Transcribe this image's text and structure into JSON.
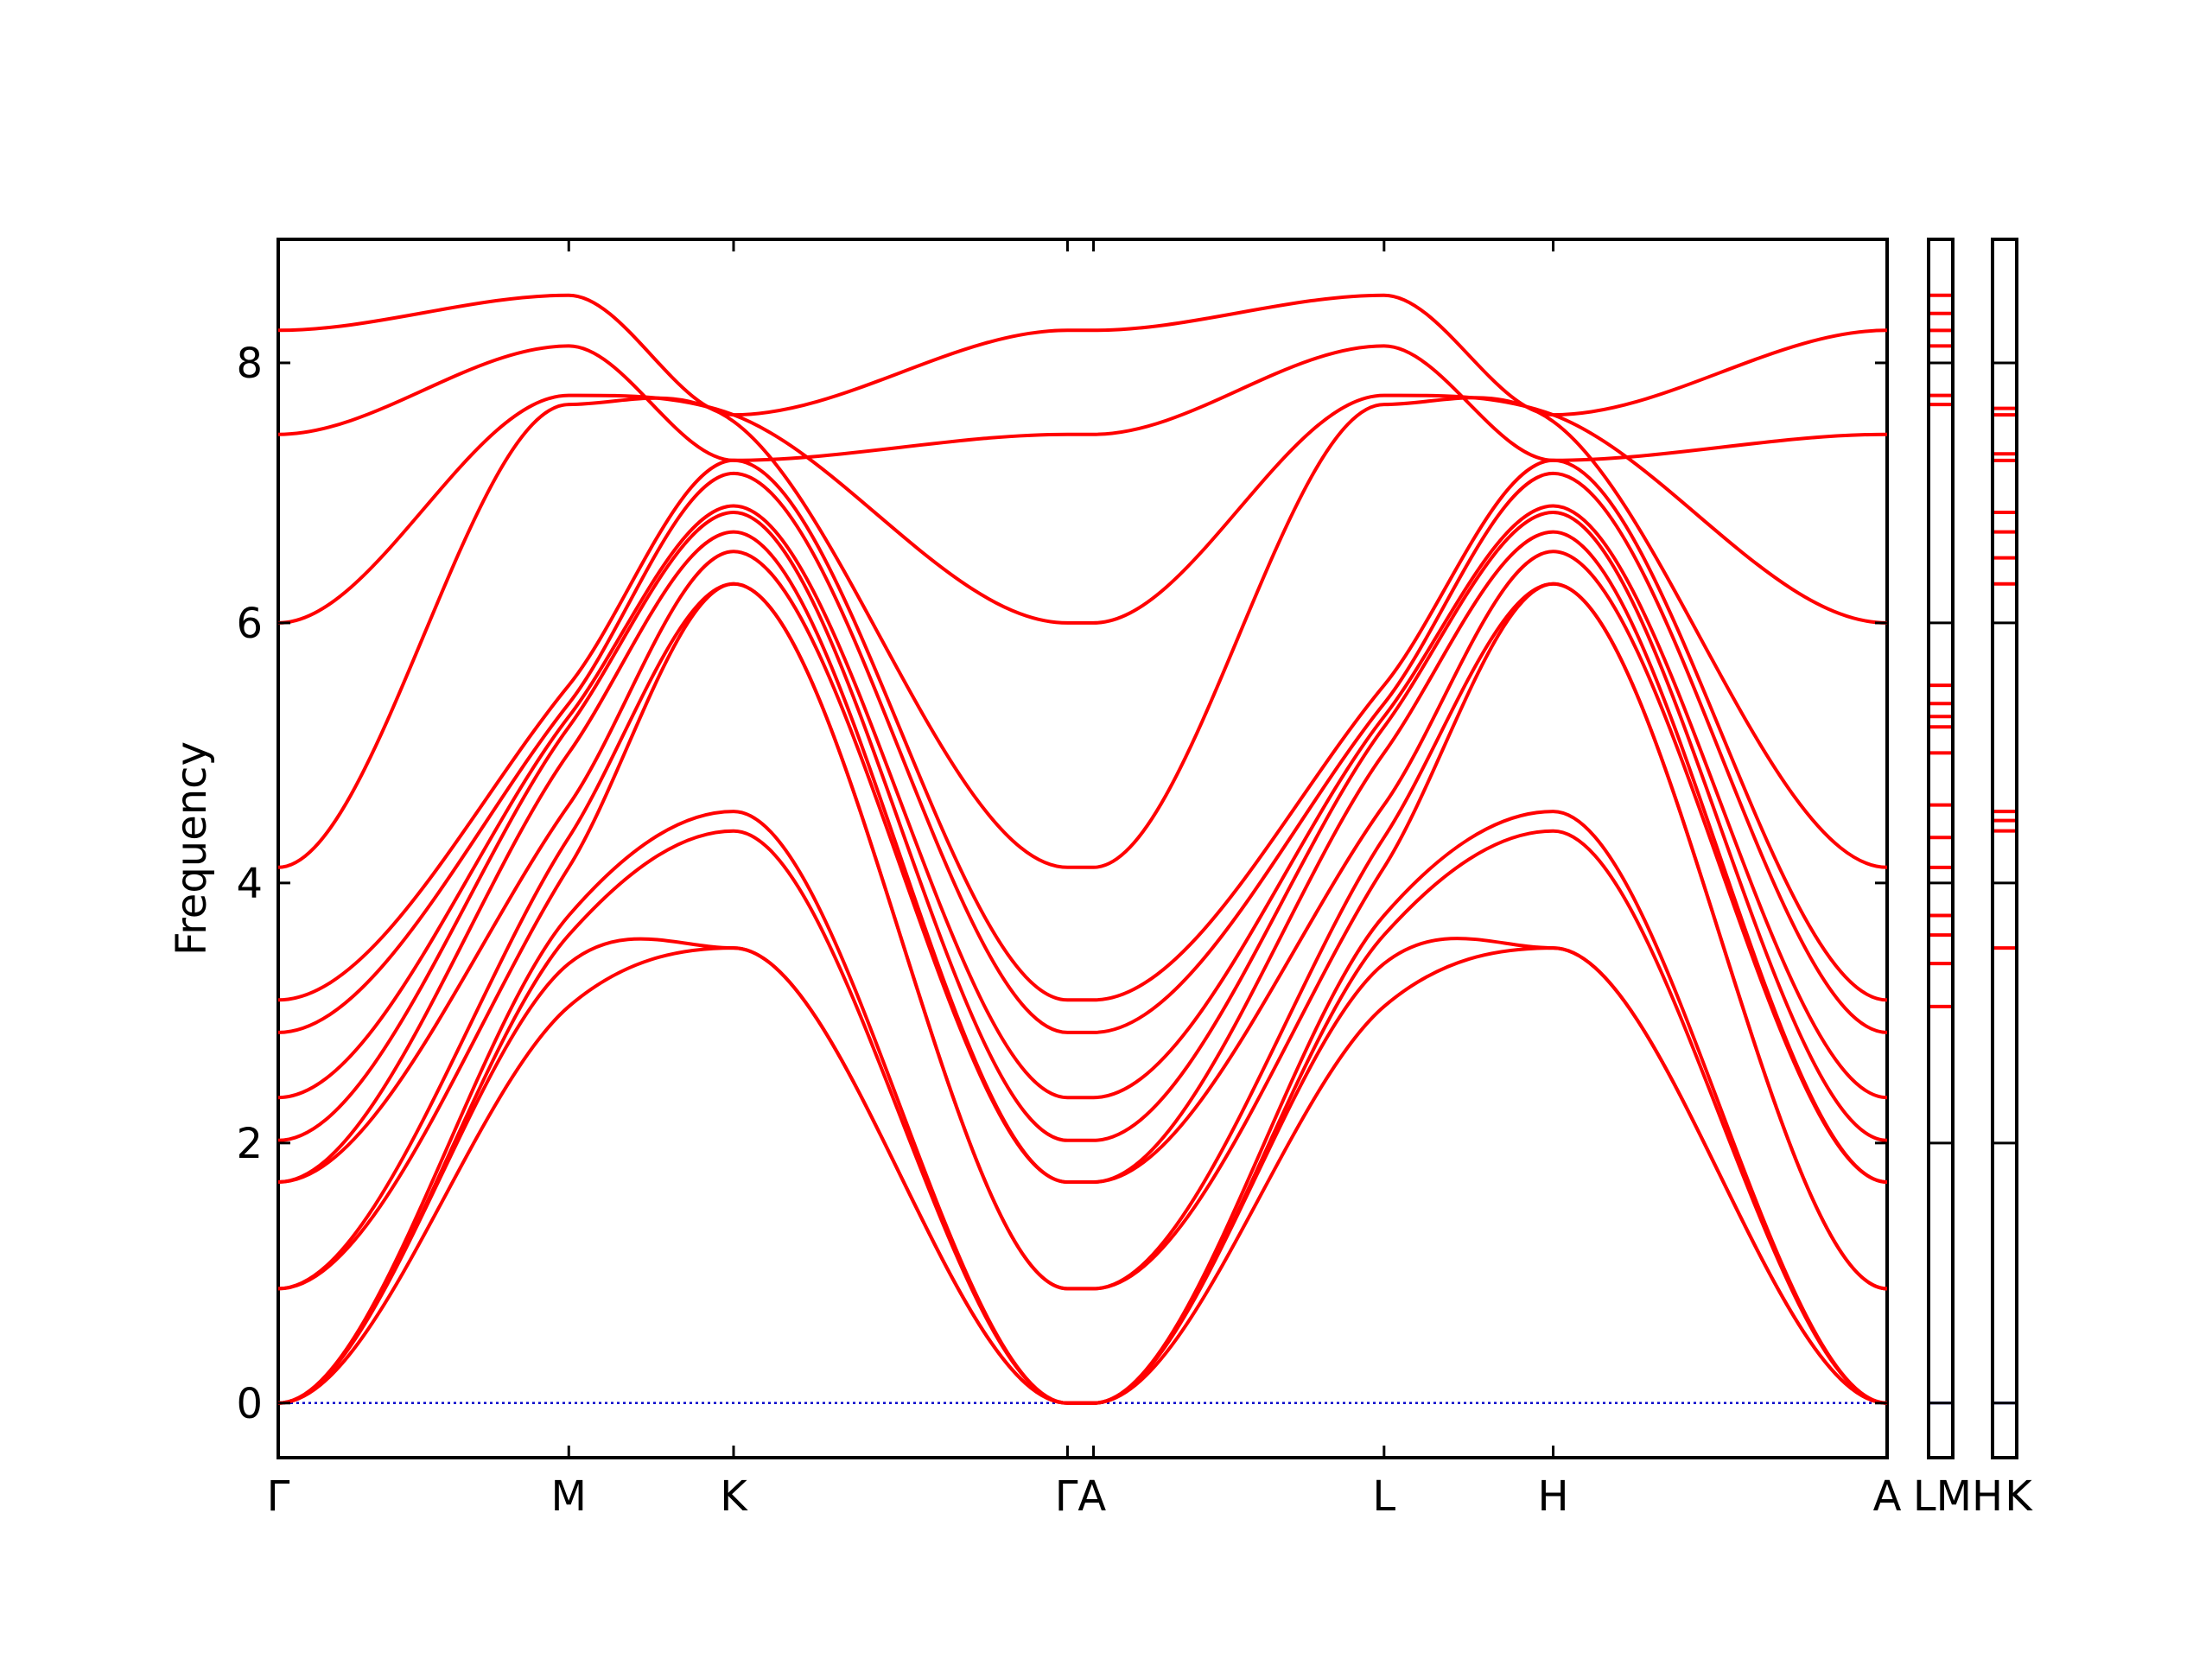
{
  "chart_data": {
    "type": "line",
    "title": "",
    "xlabel": "",
    "ylabel": "Frequency",
    "ylim": [
      -0.42,
      8.95
    ],
    "yticks": [
      0,
      2,
      4,
      6,
      8
    ],
    "grid": false,
    "legend": "none",
    "line_color": "#ff0000",
    "zero_line_color": "#0000cc",
    "main_panel": {
      "xlim": [
        0,
        3.71
      ],
      "xticks": [
        {
          "x": 0.0,
          "label": "Γ"
        },
        {
          "x": 0.67,
          "label": "M"
        },
        {
          "x": 1.05,
          "label": "K"
        },
        {
          "x": 1.82,
          "label": "Γ"
        },
        {
          "x": 1.88,
          "label": "A"
        },
        {
          "x": 2.55,
          "label": "L"
        },
        {
          "x": 2.94,
          "label": "H"
        },
        {
          "x": 3.71,
          "label": "A"
        }
      ],
      "tick_label_text": [
        "Γ",
        "M",
        "K",
        "ΓA",
        "L",
        "H",
        "A"
      ],
      "bands": [
        [
          0.0,
          3.05,
          3.5,
          0.0,
          0.0,
          3.05,
          3.5,
          0.0
        ],
        [
          0.0,
          3.38,
          3.5,
          0.0,
          0.0,
          3.38,
          3.5,
          0.0
        ],
        [
          0.0,
          3.6,
          4.4,
          0.0,
          0.0,
          3.6,
          4.4,
          0.0
        ],
        [
          0.0,
          3.75,
          4.55,
          0.0,
          0.0,
          3.75,
          4.55,
          0.0
        ],
        [
          0.88,
          4.12,
          6.3,
          0.88,
          0.88,
          4.12,
          6.3,
          0.88
        ],
        [
          0.88,
          4.35,
          6.3,
          0.88,
          0.88,
          4.35,
          6.3,
          0.88
        ],
        [
          1.7,
          4.6,
          6.55,
          1.7,
          1.7,
          4.6,
          6.55,
          1.7
        ],
        [
          1.7,
          5.0,
          6.7,
          1.7,
          1.7,
          5.0,
          6.7,
          1.7
        ],
        [
          2.02,
          5.2,
          6.85,
          2.02,
          2.02,
          5.2,
          6.85,
          2.02
        ],
        [
          2.35,
          5.28,
          6.9,
          2.35,
          2.35,
          5.28,
          6.9,
          2.35
        ],
        [
          2.85,
          5.38,
          7.15,
          2.85,
          2.85,
          5.38,
          7.15,
          2.85
        ],
        [
          3.1,
          5.52,
          7.25,
          3.1,
          3.1,
          5.52,
          7.25,
          3.1
        ],
        [
          4.12,
          7.68,
          7.55,
          4.12,
          4.12,
          7.68,
          7.55,
          4.12
        ],
        [
          6.0,
          7.75,
          7.6,
          6.0,
          6.0,
          7.75,
          7.6,
          6.0
        ],
        [
          7.45,
          8.13,
          7.25,
          7.45,
          7.45,
          8.13,
          7.25,
          7.45
        ],
        [
          8.25,
          8.52,
          7.6,
          8.25,
          8.25,
          8.52,
          7.6,
          8.25
        ]
      ]
    },
    "dos_panel_LM": {
      "xticks": [
        {
          "label": "L"
        },
        {
          "label": "M"
        }
      ],
      "levels": [
        3.05,
        3.38,
        3.6,
        3.75,
        4.12,
        4.35,
        4.6,
        5.0,
        5.2,
        5.28,
        5.38,
        5.52,
        7.68,
        7.75,
        8.13,
        8.25,
        8.38,
        8.52
      ]
    },
    "dos_panel_HK": {
      "xticks": [
        {
          "label": "H"
        },
        {
          "label": "K"
        }
      ],
      "tick_label_text": [
        "LMH",
        "K"
      ],
      "levels": [
        3.5,
        4.4,
        4.48,
        4.55,
        6.3,
        6.5,
        6.7,
        6.85,
        7.25,
        7.3,
        7.6,
        7.65
      ]
    }
  }
}
